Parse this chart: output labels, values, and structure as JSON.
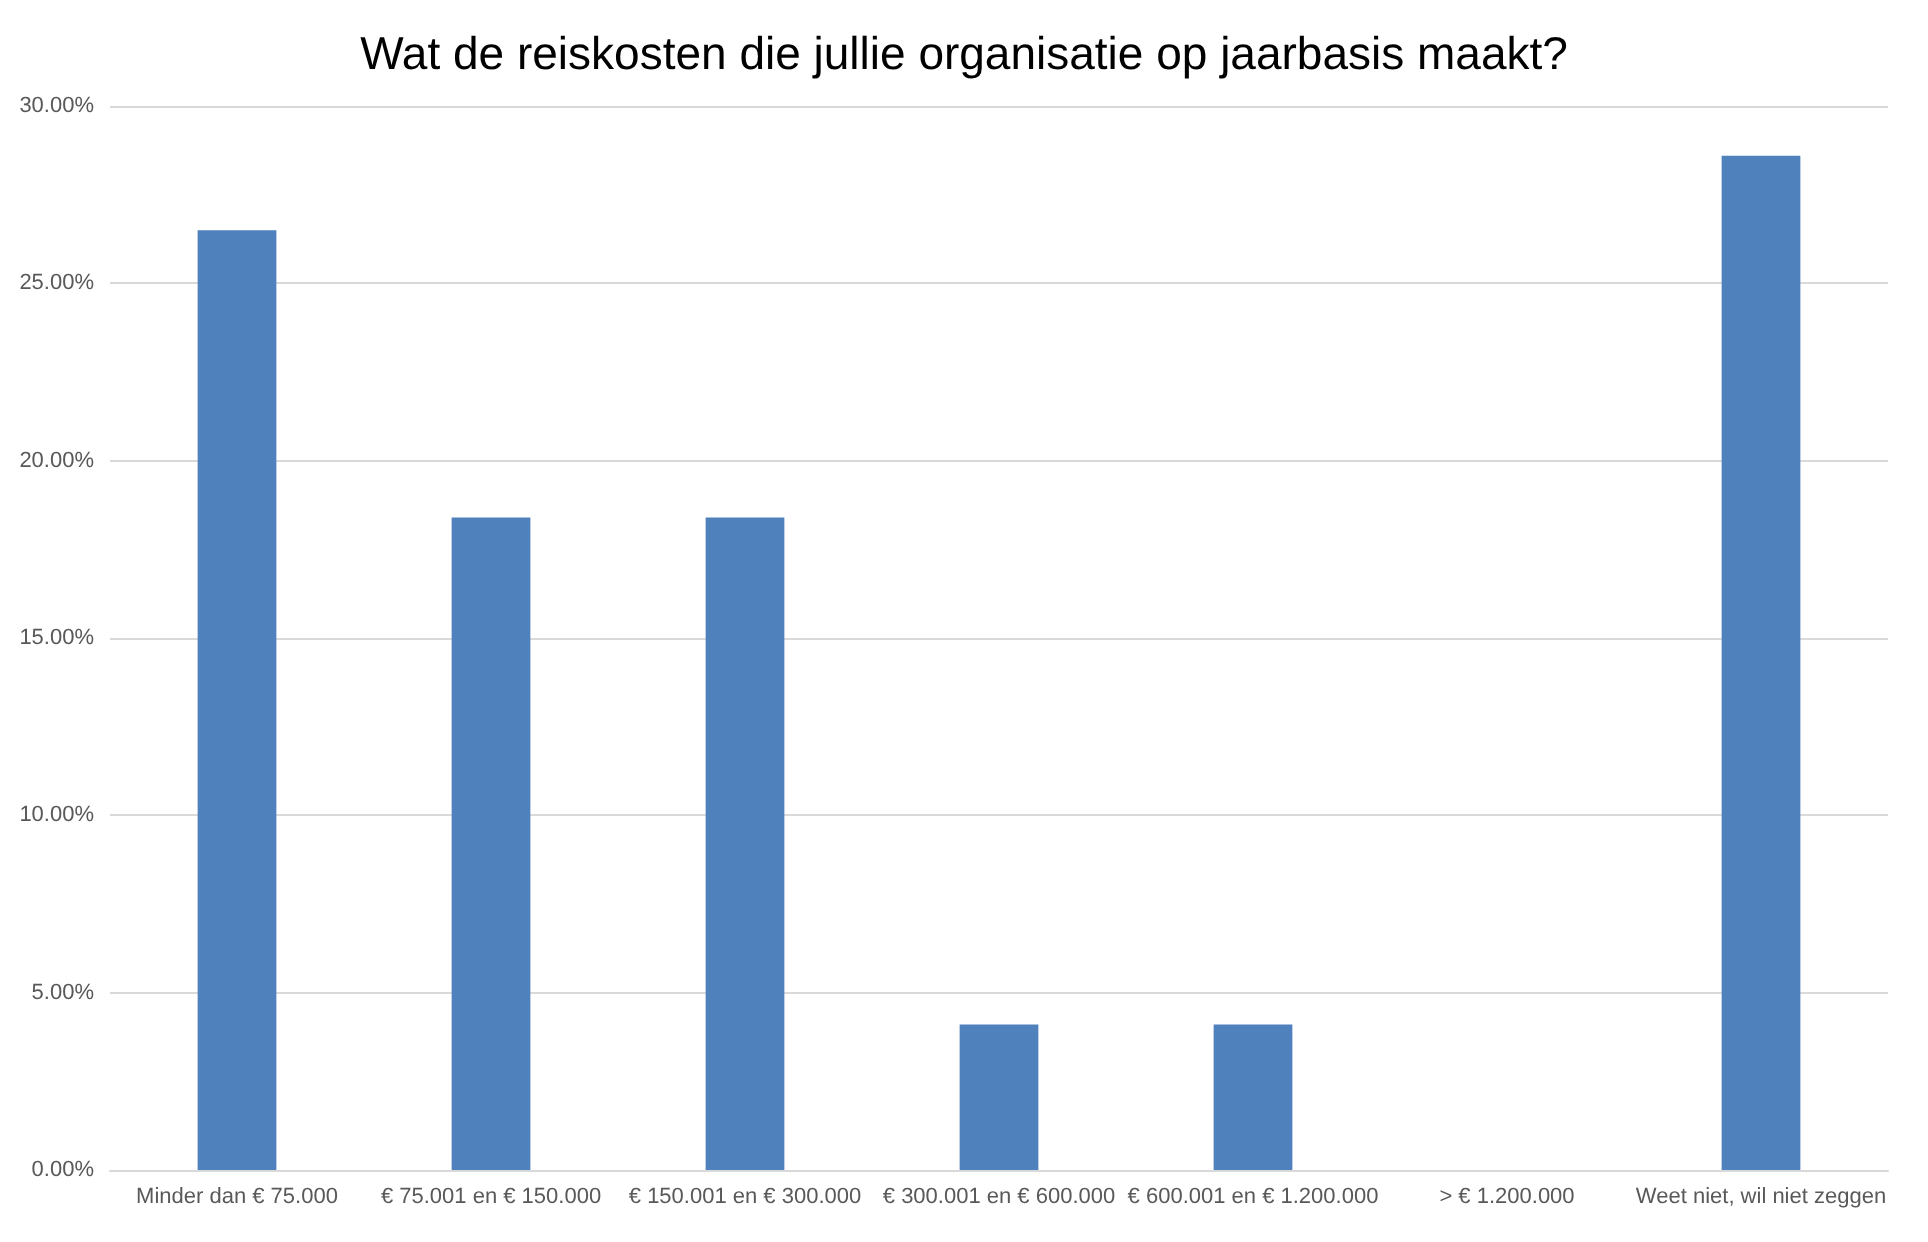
{
  "chart_data": {
    "type": "bar",
    "title": "Wat de reiskosten die jullie organisatie op jaarbasis maakt?",
    "categories": [
      "Minder dan € 75.000",
      "€ 75.001 en € 150.000",
      "€ 150.001 en € 300.000",
      "€ 300.001 en € 600.000",
      "€ 600.001 en € 1.200.000",
      "> € 1.200.000",
      "Weet niet, wil niet zeggen"
    ],
    "values": [
      26.5,
      18.4,
      18.4,
      4.1,
      4.1,
      0,
      28.6
    ],
    "color": "#4f81bd",
    "ylim": [
      0,
      30
    ],
    "yticks": [
      {
        "value": 0,
        "label": "0.00%"
      },
      {
        "value": 5,
        "label": "5.00%"
      },
      {
        "value": 10,
        "label": "10.00%"
      },
      {
        "value": 15,
        "label": "15.00%"
      },
      {
        "value": 20,
        "label": "20.00%"
      },
      {
        "value": 25,
        "label": "25.00%"
      },
      {
        "value": 30,
        "label": "30.00%"
      }
    ],
    "grid": true
  }
}
